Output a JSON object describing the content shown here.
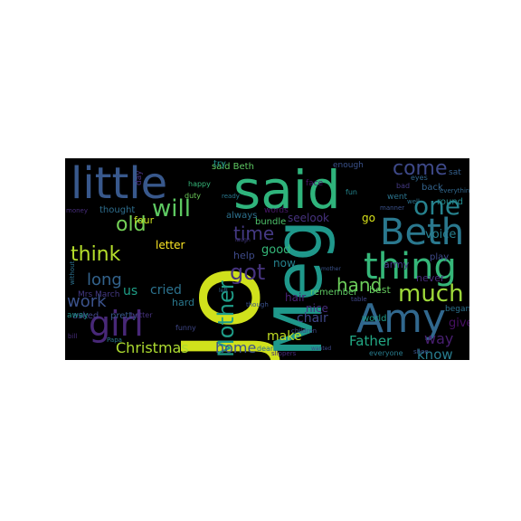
{
  "wordcloud": {
    "background": "#000000",
    "palette": [
      "#440154",
      "#3b528b",
      "#21918c",
      "#5ec962",
      "#fde725"
    ],
    "words": [
      {
        "text": "Jo",
        "color": "#d0e11c"
      },
      {
        "text": "said",
        "color": "#2fb47c"
      },
      {
        "text": "Meg",
        "color": "#1f988b"
      },
      {
        "text": "little",
        "color": "#38588c"
      },
      {
        "text": "Beth",
        "color": "#2a788e"
      },
      {
        "text": "thing",
        "color": "#35b779"
      },
      {
        "text": "Amy",
        "color": "#31688e"
      },
      {
        "text": "girl",
        "color": "#482878"
      },
      {
        "text": "Mother",
        "color": "#1f9e89"
      },
      {
        "text": "one",
        "color": "#26828e"
      },
      {
        "text": "will",
        "color": "#5ec962"
      },
      {
        "text": "much",
        "color": "#9fda3a"
      },
      {
        "text": "come",
        "color": "#3e4989"
      },
      {
        "text": "got",
        "color": "#46337e"
      },
      {
        "text": "think",
        "color": "#b5de2b"
      },
      {
        "text": "old",
        "color": "#73d056"
      },
      {
        "text": "time",
        "color": "#443983"
      },
      {
        "text": "hand",
        "color": "#6ccd5a"
      },
      {
        "text": "long",
        "color": "#33638d"
      },
      {
        "text": "work",
        "color": "#3b528b"
      },
      {
        "text": "Christmas",
        "color": "#addc30"
      },
      {
        "text": "home",
        "color": "#3b528b"
      },
      {
        "text": "Father",
        "color": "#22a884"
      },
      {
        "text": "way",
        "color": "#481f70"
      },
      {
        "text": "know",
        "color": "#287c8e"
      },
      {
        "text": "give",
        "color": "#471063"
      },
      {
        "text": "make",
        "color": "#c2df23"
      },
      {
        "text": "cried",
        "color": "#2c728e"
      },
      {
        "text": "chair",
        "color": "#3f4788"
      },
      {
        "text": "letter",
        "color": "#fde725"
      },
      {
        "text": "seelook",
        "color": "#46327e"
      },
      {
        "text": "voice",
        "color": "#277f8e"
      },
      {
        "text": "nice",
        "color": "#472d7b"
      },
      {
        "text": "hair",
        "color": "#482173"
      },
      {
        "text": "now",
        "color": "#26828e"
      },
      {
        "text": "good",
        "color": "#35b779"
      },
      {
        "text": "us",
        "color": "#1fa088"
      },
      {
        "text": "four",
        "color": "#c8e020"
      },
      {
        "text": "go",
        "color": "#d8e219"
      },
      {
        "text": "hard",
        "color": "#2a788e"
      },
      {
        "text": "help",
        "color": "#3e4a89"
      },
      {
        "text": "remember",
        "color": "#5ec962"
      },
      {
        "text": "never",
        "color": "#472c7a"
      },
      {
        "text": "army",
        "color": "#443a83"
      },
      {
        "text": "said Beth",
        "color": "#5ec962"
      },
      {
        "text": "always",
        "color": "#2c718e"
      },
      {
        "text": "words",
        "color": "#481769"
      },
      {
        "text": "bundle",
        "color": "#4ec36b"
      },
      {
        "text": "best",
        "color": "#65cb5e"
      },
      {
        "text": "world",
        "color": "#1f9e89"
      },
      {
        "text": "play",
        "color": "#3e4989"
      },
      {
        "text": "began",
        "color": "#2c728e"
      },
      {
        "text": "round",
        "color": "#238a8d"
      },
      {
        "text": "went",
        "color": "#2b748e"
      },
      {
        "text": "back",
        "color": "#33638d"
      },
      {
        "text": "sat",
        "color": "#35608d"
      },
      {
        "text": "enough",
        "color": "#3b528b"
      },
      {
        "text": "face",
        "color": "#471365"
      },
      {
        "text": "fun",
        "color": "#24868e"
      },
      {
        "text": "thought",
        "color": "#2e6e8e"
      },
      {
        "text": "happy",
        "color": "#35b779"
      },
      {
        "text": "asked",
        "color": "#414487"
      },
      {
        "text": "pretty",
        "color": "#38588c"
      },
      {
        "text": "Mrs March",
        "color": "#443983"
      },
      {
        "text": "away",
        "color": "#21918c"
      },
      {
        "text": "better",
        "color": "#46337e"
      },
      {
        "text": "funny",
        "color": "#3f4788"
      },
      {
        "text": "Papa",
        "color": "#2a788e"
      },
      {
        "text": "day",
        "color": "#46307e"
      },
      {
        "text": "dear",
        "color": "#2e6f8e"
      },
      {
        "text": "slippers",
        "color": "#482979"
      },
      {
        "text": "everyone",
        "color": "#287c8e"
      },
      {
        "text": "shoe",
        "color": "#3b528b"
      },
      {
        "text": "try",
        "color": "#21918c"
      },
      {
        "text": "children",
        "color": "#3e4a89"
      },
      {
        "text": "though",
        "color": "#3b528b"
      },
      {
        "text": "table",
        "color": "#3f4788"
      },
      {
        "text": "eyes",
        "color": "#31688e"
      },
      {
        "text": "bad",
        "color": "#443983"
      },
      {
        "text": "everything",
        "color": "#31688e"
      },
      {
        "text": "manner",
        "color": "#3b528b"
      },
      {
        "text": "well",
        "color": "#2c728e"
      },
      {
        "text": "money",
        "color": "#472d7b"
      },
      {
        "text": "duty",
        "color": "#6ccd5a"
      },
      {
        "text": "ready",
        "color": "#2a788e"
      },
      {
        "text": "without",
        "color": "#2c718e"
      },
      {
        "text": "mother",
        "color": "#3b528b"
      },
      {
        "text": "laugh",
        "color": "#443983"
      },
      {
        "text": "left",
        "color": "#31688e"
      },
      {
        "text": "wanted",
        "color": "#3e4989"
      },
      {
        "text": "bill",
        "color": "#472d7b"
      }
    ]
  }
}
